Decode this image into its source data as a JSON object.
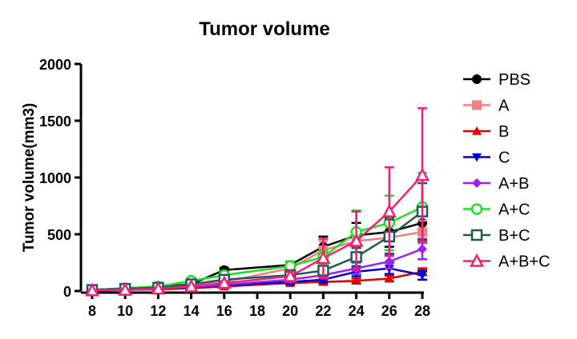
{
  "chart_data": {
    "type": "line",
    "title": "Tumor volume",
    "ylabel": "Tumor volume(mm3)",
    "xlabel": "",
    "x": [
      8,
      10,
      12,
      14,
      16,
      20,
      22,
      24,
      26,
      28
    ],
    "xticks": [
      8,
      10,
      12,
      14,
      16,
      18,
      20,
      22,
      24,
      26,
      28
    ],
    "xlim": [
      8,
      28
    ],
    "ylim": [
      0,
      2000
    ],
    "yticks": [
      0,
      500,
      1000,
      1500,
      2000
    ],
    "grid": false,
    "legend_position": "right",
    "series": [
      {
        "name": "PBS",
        "color": "#000000",
        "marker": "circle",
        "values": [
          10,
          25,
          40,
          60,
          185,
          230,
          390,
          490,
          520,
          600
        ],
        "errors": [
          0,
          5,
          8,
          15,
          20,
          30,
          90,
          110,
          130,
          90
        ]
      },
      {
        "name": "A",
        "color": "#F08080",
        "marker": "square",
        "values": [
          10,
          20,
          35,
          50,
          80,
          200,
          360,
          440,
          470,
          520
        ],
        "errors": [
          0,
          5,
          8,
          10,
          20,
          40,
          80,
          100,
          110,
          100
        ]
      },
      {
        "name": "B",
        "color": "#E00000",
        "marker": "triangle-up",
        "values": [
          5,
          10,
          15,
          25,
          40,
          70,
          80,
          90,
          110,
          170
        ],
        "errors": [
          0,
          3,
          5,
          8,
          10,
          15,
          15,
          20,
          25,
          30
        ]
      },
      {
        "name": "C",
        "color": "#0000CC",
        "marker": "triangle-down",
        "values": [
          5,
          10,
          20,
          30,
          50,
          80,
          100,
          170,
          200,
          140
        ],
        "errors": [
          0,
          3,
          5,
          8,
          12,
          20,
          25,
          40,
          50,
          40
        ]
      },
      {
        "name": "A+B",
        "color": "#A020F0",
        "marker": "diamond",
        "values": [
          5,
          15,
          25,
          35,
          55,
          100,
          140,
          200,
          260,
          370
        ],
        "errors": [
          0,
          3,
          5,
          8,
          12,
          20,
          30,
          50,
          60,
          90
        ]
      },
      {
        "name": "A+C",
        "color": "#22DD22",
        "marker": "circle-open",
        "values": [
          10,
          25,
          40,
          90,
          140,
          220,
          300,
          520,
          600,
          740
        ],
        "errors": [
          0,
          5,
          10,
          20,
          30,
          40,
          60,
          190,
          240,
          300
        ]
      },
      {
        "name": "B+C",
        "color": "#1E5A5A",
        "marker": "square-open",
        "values": [
          10,
          20,
          30,
          60,
          100,
          140,
          180,
          300,
          480,
          700
        ],
        "errors": [
          0,
          5,
          8,
          15,
          20,
          30,
          40,
          80,
          150,
          250
        ]
      },
      {
        "name": "A+B+C",
        "color": "#F0207A",
        "marker": "triangle-open",
        "values": [
          5,
          10,
          20,
          40,
          70,
          130,
          290,
          440,
          700,
          1020
        ],
        "errors": [
          0,
          3,
          5,
          10,
          15,
          40,
          170,
          260,
          390,
          590
        ]
      }
    ]
  }
}
